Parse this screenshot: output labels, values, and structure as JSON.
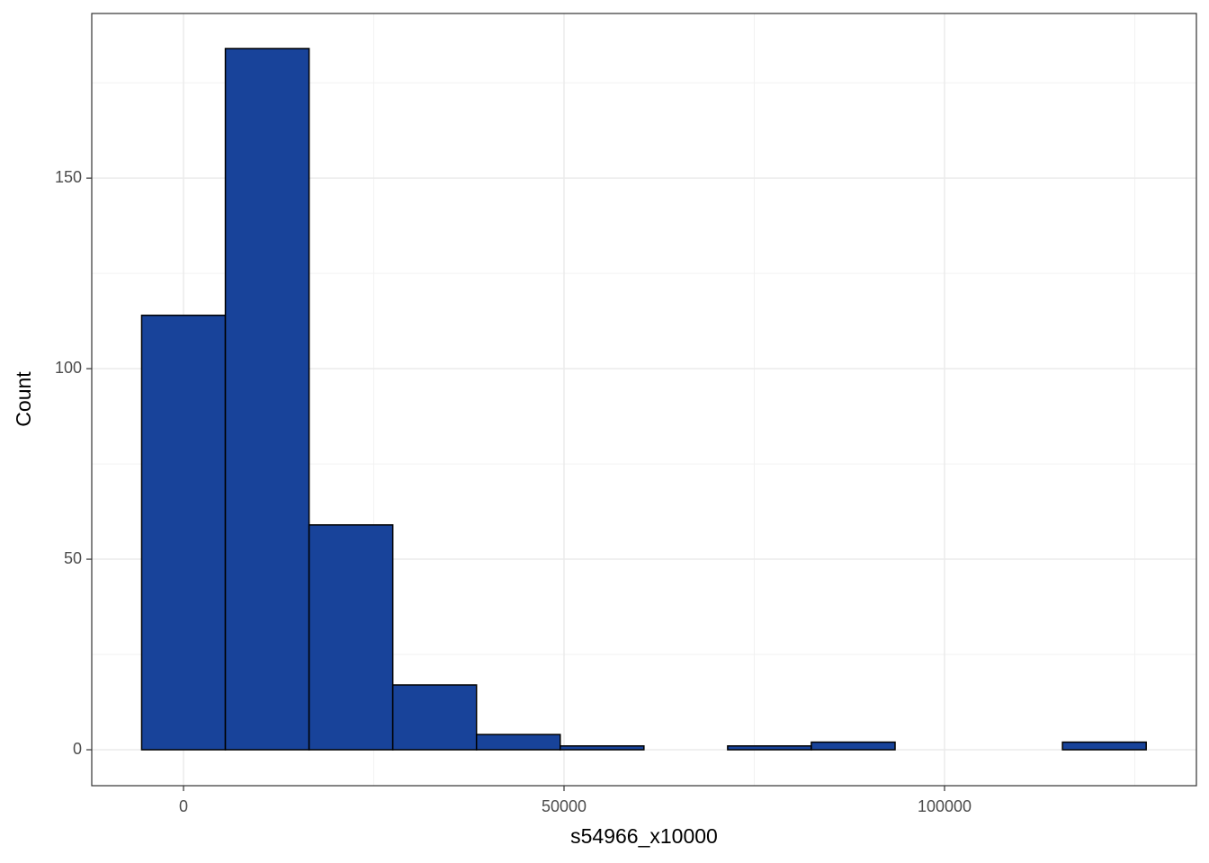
{
  "chart_data": {
    "type": "histogram",
    "x_label": "s54966_x10000",
    "y_label": "Count",
    "bins": [
      -5500,
      5500,
      16500,
      27500,
      38500,
      49500,
      60500,
      71500,
      82500,
      93500,
      104500,
      115500,
      126500
    ],
    "values": [
      114,
      184,
      59,
      17,
      4,
      1,
      0,
      1,
      2,
      0,
      0,
      2
    ],
    "color": "#18439a",
    "edge_color": "#000000",
    "xlim": [
      -12057,
      133097
    ],
    "ylim": [
      -9.43,
      193.2
    ],
    "xticks": [
      0,
      50000,
      100000
    ],
    "yticks": [
      0,
      50,
      100,
      150
    ],
    "xminor": [
      25000,
      75000,
      125000
    ],
    "yminor": [
      25,
      75,
      125,
      175
    ],
    "grid": true
  }
}
